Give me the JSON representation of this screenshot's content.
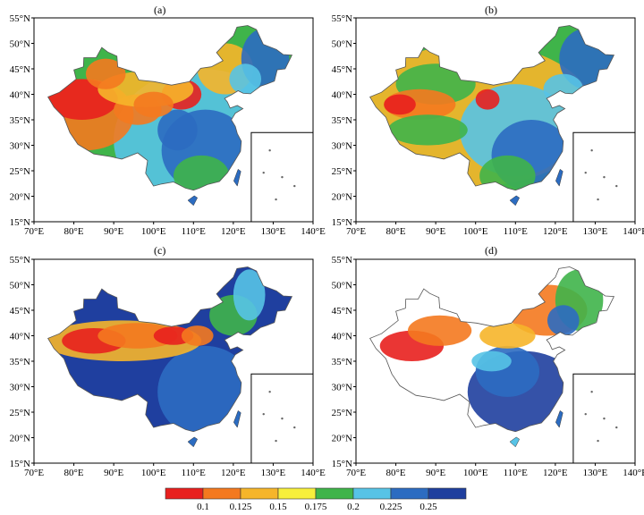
{
  "panels": [
    {
      "label": "(a)",
      "fill": "mixed"
    },
    {
      "label": "(b)",
      "fill": "mixed"
    },
    {
      "label": "(c)",
      "fill": "blue"
    },
    {
      "label": "(d)",
      "fill": "partial"
    }
  ],
  "axes": {
    "lon_ticks": [
      "70°E",
      "80°E",
      "90°E",
      "100°E",
      "110°E",
      "120°E",
      "130°E",
      "140°E"
    ],
    "lat_ticks": [
      "15°N",
      "20°N",
      "25°N",
      "30°N",
      "35°N",
      "40°N",
      "45°N",
      "50°N",
      "55°N"
    ]
  },
  "legend": {
    "labels": [
      "0.1",
      "0.125",
      "0.15",
      "0.175",
      "0.2",
      "0.225",
      "0.25"
    ],
    "colors": [
      "#e8201e",
      "#f4791f",
      "#f6b52a",
      "#f7ef3c",
      "#3fb44a",
      "#57c3e6",
      "#2c6cc1",
      "#1f3f9e"
    ]
  },
  "colors": {
    "red": "#e8201e",
    "orange": "#f4791f",
    "yellow": "#f6b52a",
    "lightyellow": "#f7ef3c",
    "green": "#3fb44a",
    "cyan": "#57c3e6",
    "blue": "#2c6cc1",
    "navy": "#1f3f9e"
  }
}
